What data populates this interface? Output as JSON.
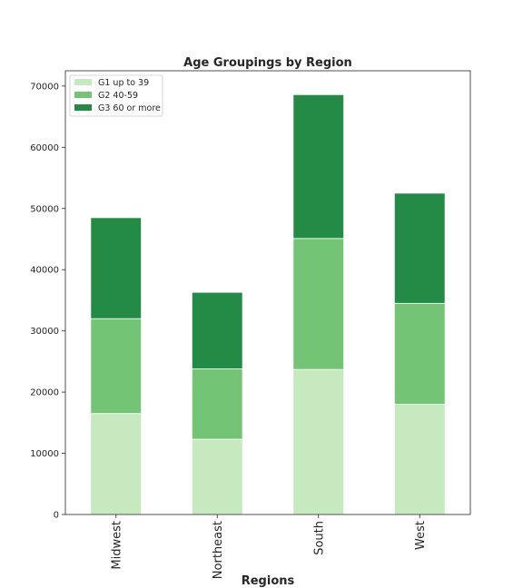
{
  "chart_data": {
    "type": "bar",
    "stacked": true,
    "title": "Age Groupings by Region",
    "xlabel": "Regions",
    "ylabel": "",
    "categories": [
      "Midwest",
      "Northeast",
      "South",
      "West"
    ],
    "series": [
      {
        "name": "G1 up to 39",
        "color": "#c7e9c0",
        "values": [
          16500,
          12300,
          23700,
          18000
        ]
      },
      {
        "name": "G2 40-59",
        "color": "#74c476",
        "values": [
          15500,
          11500,
          21400,
          16500
        ]
      },
      {
        "name": "G3 60 or more",
        "color": "#238b45",
        "values": [
          16500,
          12500,
          23500,
          18000
        ]
      }
    ],
    "ylim": [
      0,
      72500
    ],
    "yticks": [
      0,
      10000,
      20000,
      30000,
      40000,
      50000,
      60000,
      70000
    ],
    "legend_position": "top-left",
    "grid": false
  }
}
